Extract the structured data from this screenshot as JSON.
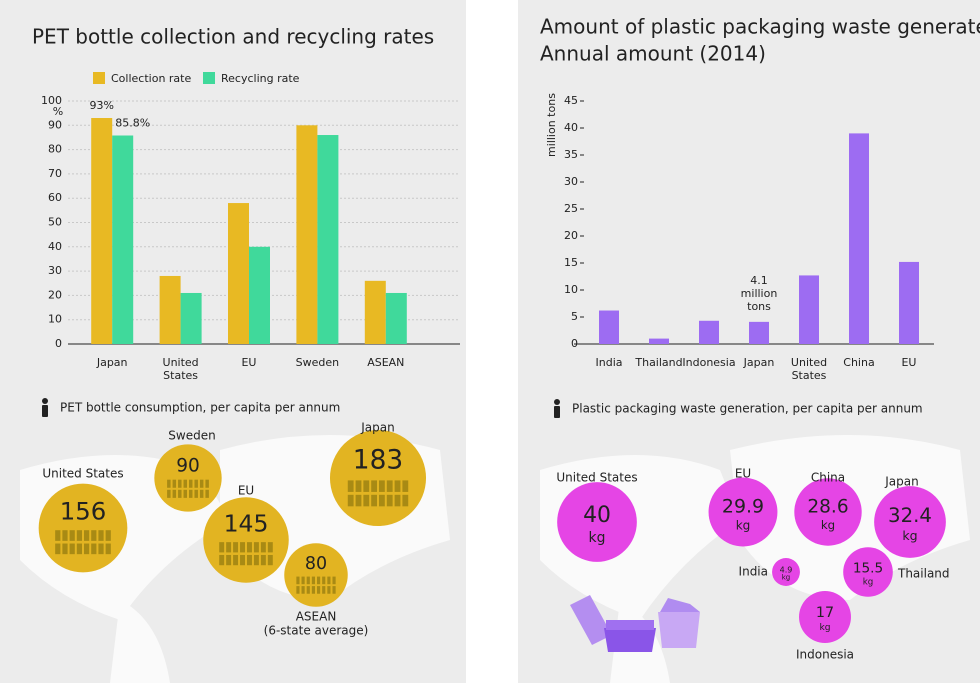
{
  "chart_data": [
    {
      "type": "bar",
      "title": "PET bottle collection and recycling rates",
      "y_label": "%",
      "categories": [
        "Japan",
        "United States",
        "EU",
        "Sweden",
        "ASEAN"
      ],
      "series": [
        {
          "name": "Collection rate",
          "color": "#e8b923",
          "values": [
            93,
            28,
            58,
            90,
            26
          ],
          "value_labels": [
            "93%",
            null,
            null,
            null,
            null
          ]
        },
        {
          "name": "Recycling rate",
          "color": "#40d99b",
          "values": [
            85.8,
            21,
            40,
            86,
            21
          ],
          "value_labels": [
            "85.8%",
            null,
            null,
            null,
            null
          ]
        }
      ],
      "ylim": [
        0,
        100
      ],
      "yticks": [
        0,
        10,
        20,
        30,
        40,
        50,
        60,
        70,
        80,
        90,
        100
      ],
      "grid": true
    },
    {
      "type": "bar",
      "title": "Amount of plastic packaging waste generated",
      "subtitle": "Annual amount (2014)",
      "y_label": "million tons",
      "categories": [
        "India",
        "Thailand",
        "Indonesia",
        "Japan",
        "United States",
        "China",
        "EU"
      ],
      "values": [
        6.2,
        1,
        4.3,
        4.1,
        12.7,
        39,
        15.2
      ],
      "value_labels": [
        null,
        null,
        null,
        "4.1 million tons",
        null,
        null,
        null
      ],
      "color": "#9d6cf2",
      "ylim": [
        0,
        45
      ],
      "yticks": [
        0,
        5,
        10,
        15,
        20,
        25,
        30,
        35,
        40,
        45
      ],
      "grid": false
    },
    {
      "type": "bubble",
      "title": "PET bottle consumption, per capita per annum",
      "categories": [
        "United States",
        "Sweden",
        "EU",
        "Japan",
        "ASEAN"
      ],
      "values": [
        156,
        90,
        145,
        183,
        80
      ],
      "annotations": [
        null,
        null,
        null,
        null,
        "(6-state average)"
      ],
      "color": "#e2b422"
    },
    {
      "type": "bubble",
      "title": "Plastic packaging waste generation, per capita per annum",
      "categories": [
        "United States",
        "EU",
        "China",
        "Japan",
        "India",
        "Thailand",
        "Indonesia"
      ],
      "values": [
        40,
        29.9,
        28.6,
        32.4,
        4.9,
        15.5,
        17
      ],
      "unit": "kg",
      "color": "#e545e5"
    }
  ]
}
